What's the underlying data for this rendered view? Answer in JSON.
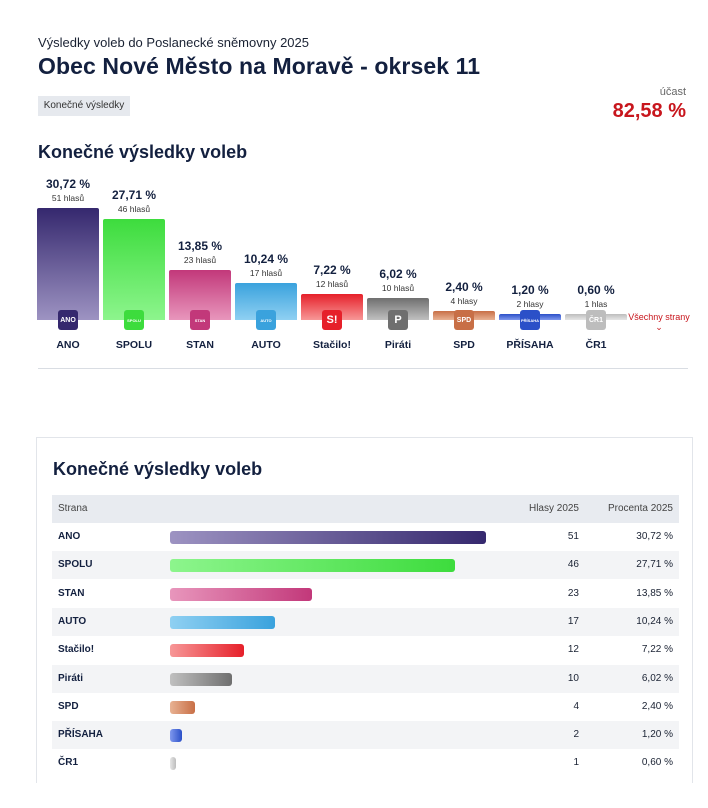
{
  "header": {
    "subtitle": "Výsledky voleb do Poslanecké sněmovny 2025",
    "title": "Obec Nové Město na Moravě - okrsek 11",
    "tag": "Konečné výsledky",
    "turnout_label": "účast",
    "turnout_value": "82,58 %"
  },
  "section_title": "Konečné výsledky voleb",
  "all_parties_link": "Všechny strany",
  "chart_data": {
    "type": "bar",
    "title": "Konečné výsledky voleb",
    "categories": [
      "ANO",
      "SPOLU",
      "STAN",
      "AUTO",
      "Stačilo!",
      "Piráti",
      "SPD",
      "PŘÍSAHA",
      "ČR1"
    ],
    "values": [
      30.72,
      27.71,
      13.85,
      10.24,
      7.22,
      6.02,
      2.4,
      1.2,
      0.6
    ],
    "value_labels": [
      "30,72 %",
      "27,71 %",
      "13,85 %",
      "10,24 %",
      "7,22 %",
      "6,02 %",
      "2,40 %",
      "1,20 %",
      "0,60 %"
    ],
    "votes": [
      51,
      46,
      23,
      17,
      12,
      10,
      4,
      2,
      1
    ],
    "vote_labels": [
      "51 hlasů",
      "46 hlasů",
      "23 hlasů",
      "17 hlasů",
      "12 hlasů",
      "10 hlasů",
      "4 hlasy",
      "2 hlasy",
      "1 hlas"
    ],
    "colors": [
      "#35286e",
      "#3ddc3d",
      "#c2387a",
      "#3aa2dd",
      "#e6202a",
      "#6f6f6f",
      "#c86f46",
      "#2b50c8",
      "#bdbdbd"
    ],
    "colors_light": [
      "#9d93c2",
      "#8df58d",
      "#e896bc",
      "#8fd0f2",
      "#f79797",
      "#c0c0c0",
      "#e8b293",
      "#7f98ee",
      "#e6e6e6"
    ],
    "logo_texts": [
      "ANO",
      "SPOLU",
      "STAN",
      "AUTO",
      "S!",
      "P",
      "SPD",
      "PŘÍSAHA",
      "ČR1"
    ],
    "icons": [
      "ano-logo",
      "spolu-logo",
      "stan-logo",
      "auto-logo",
      "stacilo-logo",
      "pirati-logo",
      "spd-logo",
      "prisaha-logo",
      "cr1-logo"
    ]
  },
  "table": {
    "title": "Konečné výsledky voleb",
    "headers": {
      "party": "Strana",
      "votes": "Hlasy 2025",
      "percent": "Procenta 2025"
    },
    "rows": [
      {
        "party": "ANO",
        "votes": "51",
        "percent": "30,72 %"
      },
      {
        "party": "SPOLU",
        "votes": "46",
        "percent": "27,71 %"
      },
      {
        "party": "STAN",
        "votes": "23",
        "percent": "13,85 %"
      },
      {
        "party": "AUTO",
        "votes": "17",
        "percent": "10,24 %"
      },
      {
        "party": "Stačilo!",
        "votes": "12",
        "percent": "7,22 %"
      },
      {
        "party": "Piráti",
        "votes": "10",
        "percent": "6,02 %"
      },
      {
        "party": "SPD",
        "votes": "4",
        "percent": "2,40 %"
      },
      {
        "party": "PŘÍSAHA",
        "votes": "2",
        "percent": "1,20 %"
      },
      {
        "party": "ČR1",
        "votes": "1",
        "percent": "0,60 %"
      }
    ]
  }
}
